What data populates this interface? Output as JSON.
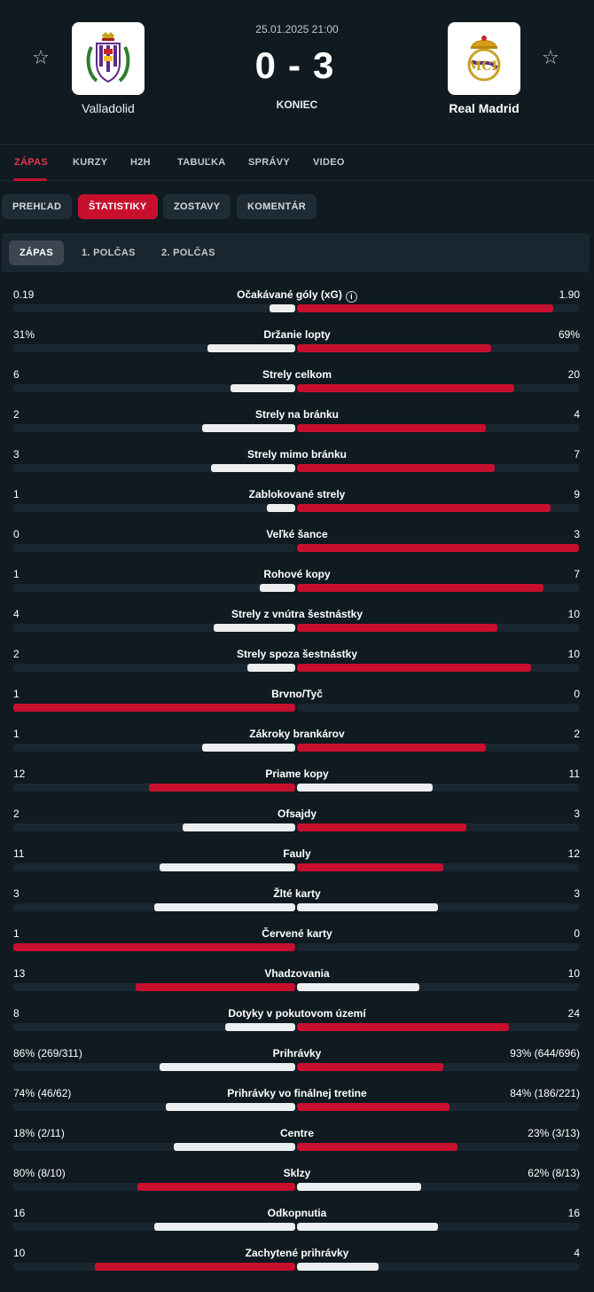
{
  "match": {
    "datetime": "25.01.2025 21:00",
    "home_score": "0",
    "score_separator": "-",
    "away_score": "3",
    "status": "KONIEC",
    "home_team": "Valladolid",
    "away_team": "Real Madrid"
  },
  "icons": {
    "favorite": "star-outline-icon",
    "info": "info-icon"
  },
  "colors": {
    "accent": "#c8102e",
    "background": "#0f1a21",
    "bar_leader": "#c8102e",
    "bar_other": "#eceeef"
  },
  "nav": {
    "tabs": [
      "ZÁPAS",
      "KURZY",
      "H2H",
      "TABUĽKA",
      "SPRÁVY",
      "VIDEO"
    ],
    "active": "ZÁPAS"
  },
  "subtabs": {
    "items": [
      "PREHĽAD",
      "ŠTATISTIKY",
      "ZOSTAVY",
      "KOMENTÁR"
    ],
    "active": "ŠTATISTIKY"
  },
  "periods": {
    "items": [
      "ZÁPAS",
      "1. POLČAS",
      "2. POLČAS"
    ],
    "active": "ZÁPAS"
  },
  "stats": [
    {
      "label": "Očakávané góly (xG)",
      "home": "0.19",
      "away": "1.90",
      "home_frac": 0.09,
      "away_frac": 0.91,
      "info": true
    },
    {
      "label": "Držanie lopty",
      "home": "31%",
      "away": "69%",
      "home_frac": 0.31,
      "away_frac": 0.69
    },
    {
      "label": "Strely celkom",
      "home": "6",
      "away": "20",
      "home_frac": 0.23,
      "away_frac": 0.77
    },
    {
      "label": "Strely na bránku",
      "home": "2",
      "away": "4",
      "home_frac": 0.33,
      "away_frac": 0.67
    },
    {
      "label": "Strely mimo bránku",
      "home": "3",
      "away": "7",
      "home_frac": 0.3,
      "away_frac": 0.7
    },
    {
      "label": "Zablokované strely",
      "home": "1",
      "away": "9",
      "home_frac": 0.1,
      "away_frac": 0.9
    },
    {
      "label": "Veľké šance",
      "home": "0",
      "away": "3",
      "home_frac": 0,
      "away_frac": 1
    },
    {
      "label": "Rohové kopy",
      "home": "1",
      "away": "7",
      "home_frac": 0.125,
      "away_frac": 0.875
    },
    {
      "label": "Strely z vnútra šestnástky",
      "home": "4",
      "away": "10",
      "home_frac": 0.29,
      "away_frac": 0.71
    },
    {
      "label": "Strely spoza šestnástky",
      "home": "2",
      "away": "10",
      "home_frac": 0.17,
      "away_frac": 0.83
    },
    {
      "label": "Brvno/Tyč",
      "home": "1",
      "away": "0",
      "home_frac": 1,
      "away_frac": 0
    },
    {
      "label": "Zákroky brankárov",
      "home": "1",
      "away": "2",
      "home_frac": 0.33,
      "away_frac": 0.67
    },
    {
      "label": "Priame kopy",
      "home": "12",
      "away": "11",
      "home_frac": 0.52,
      "away_frac": 0.48
    },
    {
      "label": "Ofsajdy",
      "home": "2",
      "away": "3",
      "home_frac": 0.4,
      "away_frac": 0.6
    },
    {
      "label": "Fauly",
      "home": "11",
      "away": "12",
      "home_frac": 0.48,
      "away_frac": 0.52
    },
    {
      "label": "Žlté karty",
      "home": "3",
      "away": "3",
      "home_frac": 0.5,
      "away_frac": 0.5
    },
    {
      "label": "Červené karty",
      "home": "1",
      "away": "0",
      "home_frac": 1,
      "away_frac": 0
    },
    {
      "label": "Vhadzovania",
      "home": "13",
      "away": "10",
      "home_frac": 0.565,
      "away_frac": 0.435
    },
    {
      "label": "Dotyky v pokutovom území",
      "home": "8",
      "away": "24",
      "home_frac": 0.25,
      "away_frac": 0.75
    },
    {
      "label": "Prihrávky",
      "home": "86% (269/311)",
      "away": "93% (644/696)",
      "home_frac": 0.48,
      "away_frac": 0.52
    },
    {
      "label": "Prihrávky vo finálnej tretine",
      "home": "74% (46/62)",
      "away": "84% (186/221)",
      "home_frac": 0.46,
      "away_frac": 0.54
    },
    {
      "label": "Centre",
      "home": "18% (2/11)",
      "away": "23% (3/13)",
      "home_frac": 0.43,
      "away_frac": 0.57
    },
    {
      "label": "Sklzy",
      "home": "80% (8/10)",
      "away": "62% (8/13)",
      "home_frac": 0.56,
      "away_frac": 0.44
    },
    {
      "label": "Odkopnutia",
      "home": "16",
      "away": "16",
      "home_frac": 0.5,
      "away_frac": 0.5
    },
    {
      "label": "Zachytené prihrávky",
      "home": "10",
      "away": "4",
      "home_frac": 0.71,
      "away_frac": 0.29
    }
  ]
}
